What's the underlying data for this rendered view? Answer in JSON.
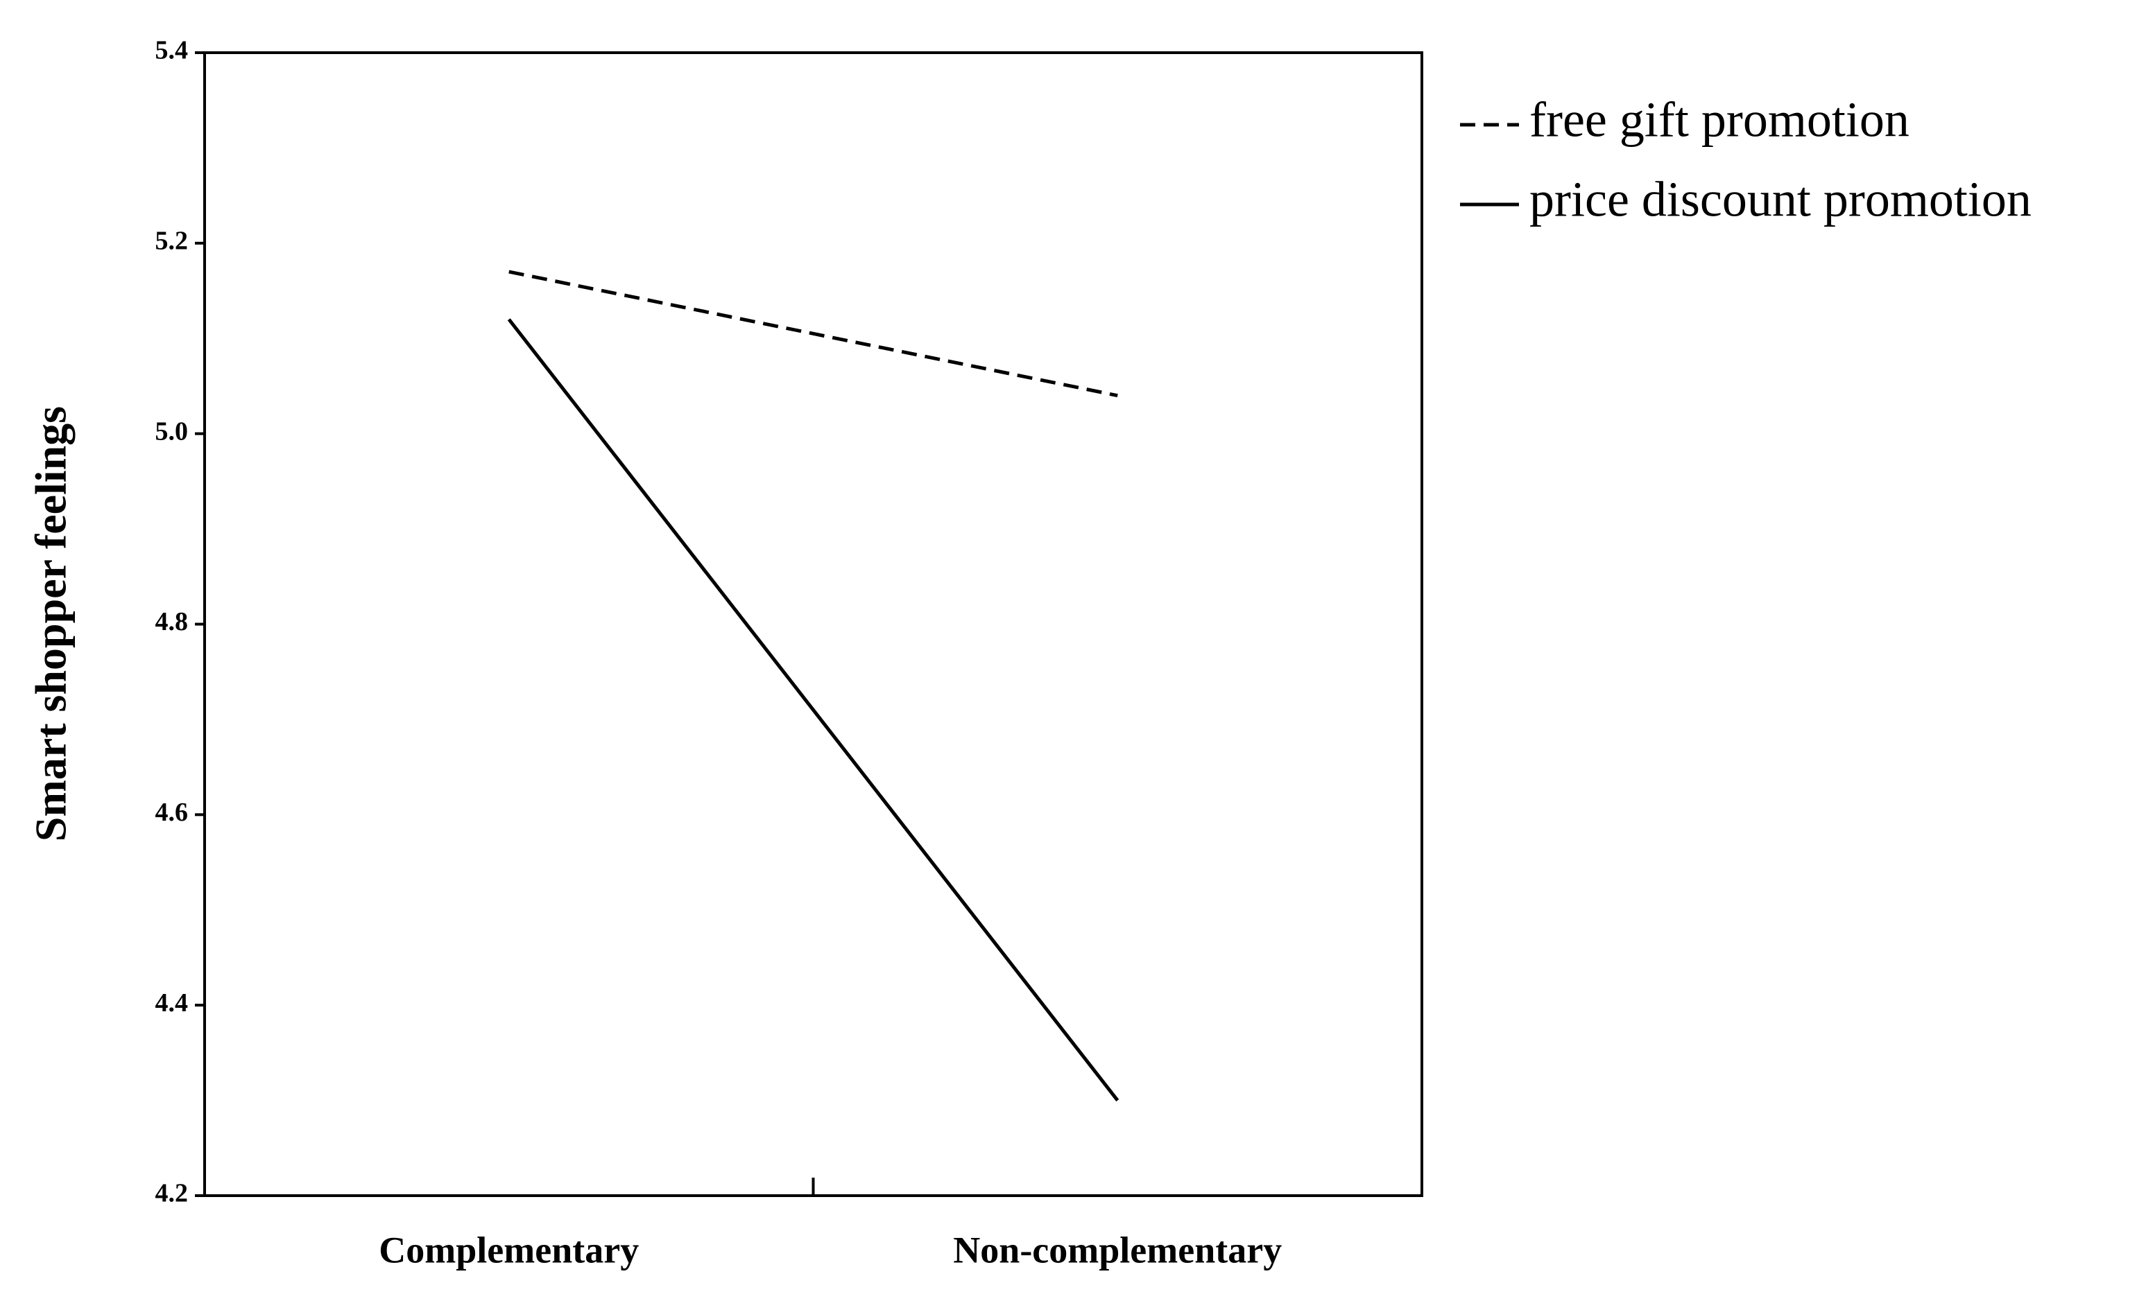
{
  "chart_data": {
    "type": "line",
    "y_label": "Smart shopper feelings",
    "categories": [
      "Complementary",
      "Non-complementary"
    ],
    "series": [
      {
        "name": "free gift promotion",
        "color": "#000000",
        "line_style": "dashed",
        "values": [
          5.17,
          5.04
        ]
      },
      {
        "name": "price discount promotion",
        "color": "#000000",
        "line_style": "solid",
        "values": [
          5.12,
          4.3
        ]
      }
    ],
    "ylim": [
      4.2,
      5.4
    ],
    "yticks": [
      4.2,
      4.4,
      4.6,
      4.8,
      {
        "value": 5,
        "label": "5.0"
      },
      5.2,
      5.4
    ],
    "grid": false,
    "legend": "right"
  }
}
